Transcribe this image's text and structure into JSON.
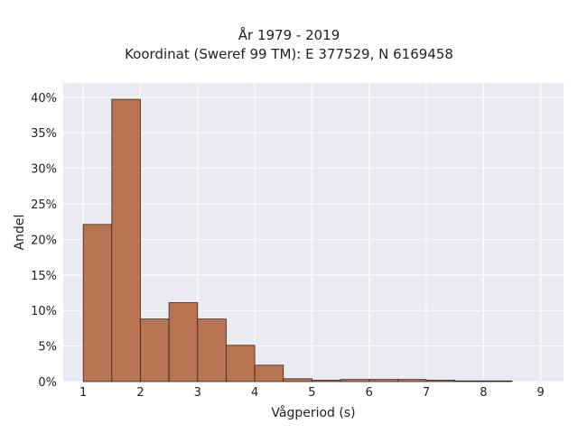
{
  "chart_data": {
    "type": "bar",
    "title": "År 1979 - 2019",
    "subtitle": "Koordinat (Sweref 99 TM): E 377529, N 6169458",
    "xlabel": "Vågperiod (s)",
    "ylabel": "Andel",
    "xlim": [
      0.65,
      9.4
    ],
    "ylim": [
      0,
      0.42
    ],
    "xticks": [
      1,
      2,
      3,
      4,
      5,
      6,
      7,
      8,
      9
    ],
    "yticks": [
      0,
      0.05,
      0.1,
      0.15,
      0.2,
      0.25,
      0.3,
      0.35,
      0.4
    ],
    "ytick_labels": [
      "0%",
      "5%",
      "10%",
      "15%",
      "20%",
      "25%",
      "30%",
      "35%",
      "40%"
    ],
    "bin_width": 0.5,
    "bins": [
      {
        "x0": 1.0,
        "x1": 1.5,
        "value": 0.221
      },
      {
        "x0": 1.5,
        "x1": 2.0,
        "value": 0.397
      },
      {
        "x0": 2.0,
        "x1": 2.5,
        "value": 0.088
      },
      {
        "x0": 2.5,
        "x1": 3.0,
        "value": 0.111
      },
      {
        "x0": 3.0,
        "x1": 3.5,
        "value": 0.088
      },
      {
        "x0": 3.5,
        "x1": 4.0,
        "value": 0.051
      },
      {
        "x0": 4.0,
        "x1": 4.5,
        "value": 0.023
      },
      {
        "x0": 4.5,
        "x1": 5.0,
        "value": 0.004
      },
      {
        "x0": 5.0,
        "x1": 5.5,
        "value": 0.002
      },
      {
        "x0": 5.5,
        "x1": 6.0,
        "value": 0.003
      },
      {
        "x0": 6.0,
        "x1": 6.5,
        "value": 0.003
      },
      {
        "x0": 6.5,
        "x1": 7.0,
        "value": 0.003
      },
      {
        "x0": 7.0,
        "x1": 7.5,
        "value": 0.002
      },
      {
        "x0": 7.5,
        "x1": 8.0,
        "value": 0.001
      },
      {
        "x0": 8.0,
        "x1": 8.5,
        "value": 0.001
      }
    ],
    "grid": true,
    "colors": {
      "bar_fill": "#b87350",
      "bar_stroke": "#3a2418",
      "plot_bg": "#eaeaf2",
      "grid": "#ffffff",
      "text": "#222222"
    }
  }
}
